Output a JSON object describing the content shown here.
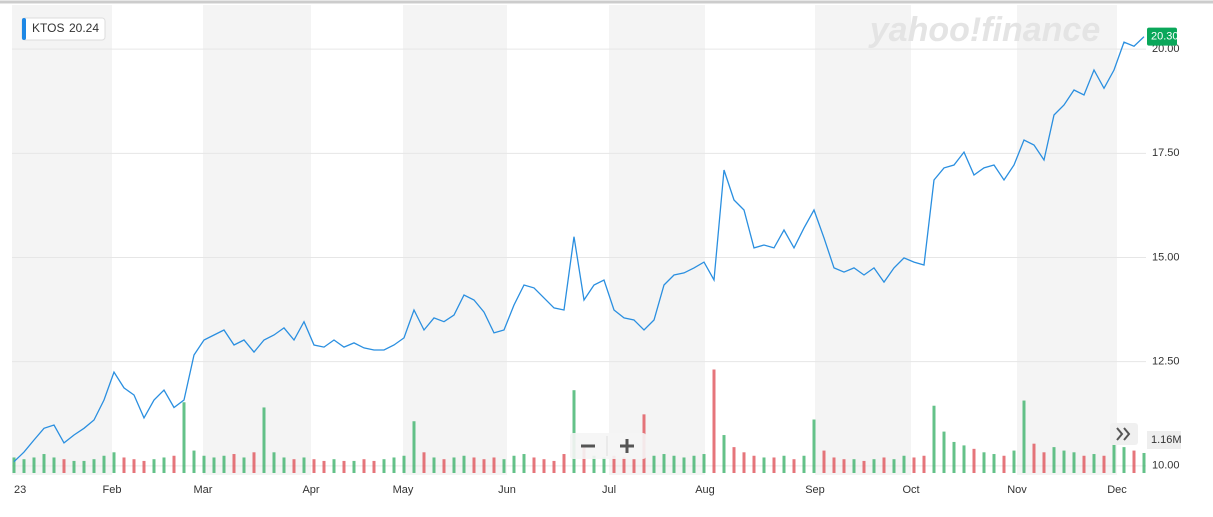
{
  "chart_data": {
    "type": "line",
    "ticker": "KTOS",
    "hover_price": 20.24,
    "watermark": "yahoo!finance",
    "current_price": {
      "value": 20.3,
      "label": "20.30"
    },
    "volume_label": {
      "value": 1.16,
      "label": "1.16M"
    },
    "color": "#2a8fe0",
    "up_color": "#3db36b",
    "down_color": "#e0525a",
    "grid": true,
    "xlim": [
      -0.2,
      113.2
    ],
    "xticks": [
      {
        "value": 0,
        "label": "23"
      },
      {
        "value": 9.8,
        "label": "Feb"
      },
      {
        "value": 18.9,
        "label": "Mar"
      },
      {
        "value": 29.7,
        "label": "Apr"
      },
      {
        "value": 38.9,
        "label": "May"
      },
      {
        "value": 49.3,
        "label": "Jun"
      },
      {
        "value": 59.5,
        "label": "Jul"
      },
      {
        "value": 69.1,
        "label": "Aug"
      },
      {
        "value": 80.1,
        "label": "Sep"
      },
      {
        "value": 89.7,
        "label": "Oct"
      },
      {
        "value": 100.3,
        "label": "Nov"
      },
      {
        "value": 110.3,
        "label": "Dec"
      }
    ],
    "ylim": [
      9.78,
      21.06
    ],
    "yticks": [
      {
        "value": 10,
        "label": "10.00"
      },
      {
        "value": 12.5,
        "label": "12.50"
      },
      {
        "value": 15,
        "label": "15.00"
      },
      {
        "value": 17.5,
        "label": "17.50"
      },
      {
        "value": 20,
        "label": "20.00"
      }
    ],
    "volume_lim": [
      0,
      8
    ],
    "values": [
      10.1,
      10.33,
      10.62,
      10.9,
      10.98,
      10.55,
      10.74,
      10.9,
      11.1,
      11.58,
      12.25,
      11.87,
      11.7,
      11.15,
      11.58,
      11.82,
      11.4,
      11.58,
      12.66,
      13.02,
      13.14,
      13.26,
      12.9,
      13.02,
      12.73,
      13.02,
      13.14,
      13.31,
      13.02,
      13.46,
      12.9,
      12.85,
      13.02,
      12.85,
      12.95,
      12.83,
      12.78,
      12.78,
      12.9,
      13.07,
      13.74,
      13.26,
      13.55,
      13.46,
      13.62,
      14.1,
      13.98,
      13.69,
      13.19,
      13.26,
      13.86,
      14.34,
      14.27,
      14.03,
      13.79,
      13.74,
      15.5,
      13.98,
      14.34,
      14.46,
      13.74,
      13.55,
      13.5,
      13.26,
      13.5,
      14.34,
      14.58,
      14.63,
      14.75,
      14.89,
      14.46,
      17.1,
      16.38,
      16.14,
      15.23,
      15.3,
      15.23,
      15.66,
      15.23,
      15.71,
      16.14,
      15.47,
      14.75,
      14.65,
      14.75,
      14.58,
      14.75,
      14.41,
      14.75,
      14.99,
      14.89,
      14.82,
      16.86,
      17.15,
      17.22,
      17.53,
      16.98,
      17.15,
      17.22,
      16.86,
      17.22,
      17.82,
      17.7,
      17.34,
      18.42,
      18.66,
      19.02,
      18.9,
      19.5,
      19.06,
      19.5,
      20.17,
      20.07,
      20.3
    ],
    "volume": [
      0.9,
      0.8,
      0.9,
      1.1,
      0.9,
      0.8,
      0.7,
      0.7,
      0.8,
      1.0,
      1.2,
      0.9,
      0.8,
      0.7,
      0.8,
      0.9,
      1.0,
      4.1,
      1.3,
      1.0,
      0.9,
      1.0,
      1.1,
      0.9,
      1.2,
      3.8,
      1.2,
      0.9,
      0.8,
      0.9,
      0.8,
      0.7,
      0.8,
      0.7,
      0.7,
      0.8,
      0.7,
      0.8,
      0.9,
      1.0,
      3.0,
      1.2,
      0.9,
      0.8,
      0.9,
      1.0,
      0.9,
      0.8,
      0.9,
      0.8,
      1.0,
      1.1,
      0.9,
      0.8,
      0.7,
      1.1,
      4.8,
      1.5,
      1.0,
      0.9,
      1.0,
      0.9,
      0.8,
      3.4,
      1.0,
      1.1,
      1.0,
      0.9,
      1.0,
      1.1,
      6.0,
      2.2,
      1.5,
      1.2,
      1.0,
      0.9,
      0.9,
      1.0,
      0.8,
      1.0,
      3.1,
      1.3,
      0.9,
      0.8,
      0.8,
      0.7,
      0.8,
      0.9,
      0.8,
      1.0,
      0.9,
      1.0,
      3.9,
      2.4,
      1.8,
      1.6,
      1.4,
      1.2,
      1.1,
      1.0,
      1.3,
      4.2,
      1.7,
      1.2,
      1.5,
      1.3,
      1.2,
      1.0,
      1.1,
      1.0,
      2.5,
      1.5,
      1.3,
      1.16
    ]
  }
}
